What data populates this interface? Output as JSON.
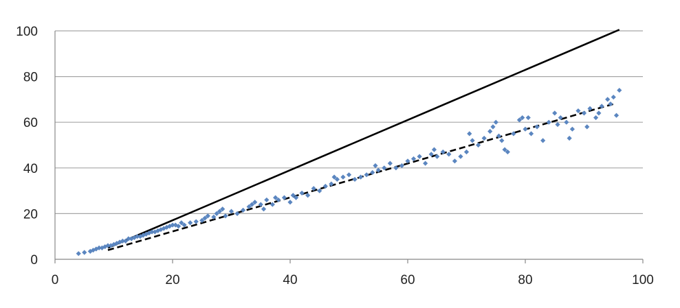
{
  "chart_data": {
    "type": "scatter",
    "title": "",
    "xlabel": "",
    "ylabel": "",
    "xlim": [
      0,
      100
    ],
    "ylim": [
      0,
      100
    ],
    "x_ticks": [
      "0",
      "20",
      "40",
      "60",
      "80",
      "100"
    ],
    "y_ticks": [
      "0",
      "20",
      "40",
      "60",
      "80",
      "100"
    ],
    "x_tick_values": [
      0,
      20,
      40,
      60,
      80,
      100
    ],
    "y_tick_values": [
      0,
      20,
      40,
      60,
      80,
      100
    ],
    "grid": "horizontal",
    "legend": "none",
    "colors": {
      "points": "#5b86c0",
      "grid": "#a6a6a6",
      "lines": "#000000"
    },
    "series": [
      {
        "kind": "scatter",
        "points": [
          [
            4,
            2.5
          ],
          [
            5,
            3
          ],
          [
            6,
            3.5
          ],
          [
            6.5,
            4
          ],
          [
            7,
            4.5
          ],
          [
            7.5,
            5
          ],
          [
            8,
            5
          ],
          [
            8.5,
            5.5
          ],
          [
            9,
            6
          ],
          [
            9.5,
            6
          ],
          [
            10,
            6.5
          ],
          [
            10.5,
            7
          ],
          [
            11,
            7.5
          ],
          [
            11.5,
            8
          ],
          [
            12,
            8
          ],
          [
            12.5,
            9
          ],
          [
            13,
            9
          ],
          [
            13.5,
            9.5
          ],
          [
            14,
            10
          ],
          [
            14.5,
            10
          ],
          [
            15,
            10.5
          ],
          [
            15.5,
            11
          ],
          [
            16,
            11.5
          ],
          [
            16.5,
            12
          ],
          [
            17,
            12
          ],
          [
            17.5,
            12.5
          ],
          [
            18,
            13
          ],
          [
            18.5,
            13.5
          ],
          [
            19,
            14
          ],
          [
            19.5,
            14.5
          ],
          [
            20,
            15
          ],
          [
            20.5,
            15
          ],
          [
            21,
            14.5
          ],
          [
            21.5,
            16
          ],
          [
            22,
            15
          ],
          [
            23,
            16
          ],
          [
            24,
            16.5
          ],
          [
            25,
            17
          ],
          [
            25.5,
            18
          ],
          [
            26,
            19
          ],
          [
            27,
            18.5
          ],
          [
            27.5,
            20
          ],
          [
            28,
            21
          ],
          [
            28.5,
            22
          ],
          [
            29,
            19
          ],
          [
            30,
            21
          ],
          [
            31,
            20
          ],
          [
            32,
            21.5
          ],
          [
            33,
            23
          ],
          [
            33.5,
            24
          ],
          [
            34,
            25
          ],
          [
            35,
            24
          ],
          [
            35.5,
            22
          ],
          [
            36,
            26
          ],
          [
            37,
            24
          ],
          [
            37.5,
            27
          ],
          [
            38,
            26
          ],
          [
            39,
            27
          ],
          [
            40,
            25
          ],
          [
            40.5,
            28
          ],
          [
            41,
            27
          ],
          [
            42,
            29
          ],
          [
            43,
            28
          ],
          [
            44,
            31
          ],
          [
            45,
            30
          ],
          [
            46,
            32
          ],
          [
            47,
            33
          ],
          [
            47.5,
            36
          ],
          [
            48,
            35
          ],
          [
            49,
            36
          ],
          [
            50,
            37
          ],
          [
            51,
            35
          ],
          [
            52,
            36
          ],
          [
            53,
            37
          ],
          [
            54,
            38
          ],
          [
            54.5,
            41
          ],
          [
            55,
            39
          ],
          [
            56,
            40
          ],
          [
            57,
            42
          ],
          [
            58,
            40
          ],
          [
            59,
            41
          ],
          [
            60,
            43
          ],
          [
            61,
            44
          ],
          [
            62,
            45
          ],
          [
            63,
            42
          ],
          [
            64,
            46
          ],
          [
            64.5,
            48
          ],
          [
            65,
            45
          ],
          [
            66,
            47
          ],
          [
            67,
            46
          ],
          [
            68,
            43
          ],
          [
            69,
            45
          ],
          [
            70,
            47
          ],
          [
            70.5,
            55
          ],
          [
            71,
            52
          ],
          [
            72,
            50
          ],
          [
            73,
            53
          ],
          [
            74,
            56
          ],
          [
            74.5,
            58
          ],
          [
            75,
            60
          ],
          [
            75.5,
            54
          ],
          [
            76,
            52
          ],
          [
            76.5,
            48
          ],
          [
            77,
            47
          ],
          [
            78,
            55
          ],
          [
            79,
            61
          ],
          [
            79.5,
            62
          ],
          [
            80,
            57
          ],
          [
            80.5,
            62
          ],
          [
            81,
            55
          ],
          [
            82,
            58
          ],
          [
            83,
            52
          ],
          [
            84,
            60
          ],
          [
            85,
            64
          ],
          [
            85.5,
            59
          ],
          [
            86,
            62
          ],
          [
            87,
            60
          ],
          [
            87.5,
            53
          ],
          [
            88,
            57
          ],
          [
            89,
            65
          ],
          [
            90,
            64
          ],
          [
            90.5,
            58
          ],
          [
            91,
            66
          ],
          [
            92,
            62
          ],
          [
            92.5,
            64
          ],
          [
            93,
            67
          ],
          [
            94,
            70
          ],
          [
            94.5,
            68
          ],
          [
            95,
            71
          ],
          [
            95.5,
            63
          ],
          [
            96,
            74
          ]
        ]
      },
      {
        "kind": "line",
        "style": "solid",
        "points": [
          [
            9,
            5
          ],
          [
            96,
            100.5
          ]
        ]
      },
      {
        "kind": "line",
        "style": "dashed",
        "points": [
          [
            9,
            4
          ],
          [
            95,
            68
          ]
        ]
      }
    ]
  }
}
